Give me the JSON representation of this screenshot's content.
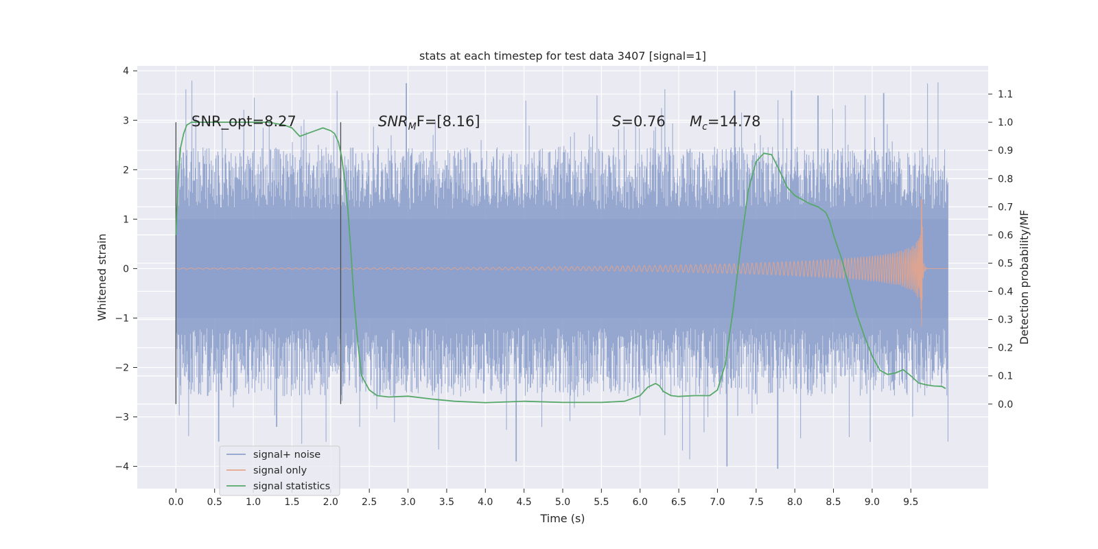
{
  "chart_data": {
    "type": "line",
    "title": "stats at each timestep for test data 3407 [signal=1]",
    "xlabel": "Time (s)",
    "ylabel": "Whitened strain",
    "y2label": "Detection probability/MF",
    "xlim": [
      -0.5,
      10.5
    ],
    "ylim": [
      -4.45,
      4.1
    ],
    "y2lim": [
      -0.3,
      1.2
    ],
    "x_ticks": [
      "0.0",
      "0.5",
      "1.0",
      "1.5",
      "2.0",
      "2.5",
      "3.0",
      "3.5",
      "4.0",
      "4.5",
      "5.0",
      "5.5",
      "6.0",
      "6.5",
      "7.0",
      "7.5",
      "8.0",
      "8.5",
      "9.0",
      "9.5"
    ],
    "y_ticks": [
      "4",
      "3",
      "2",
      "1",
      "0",
      "−1",
      "−2",
      "−3",
      "−4"
    ],
    "y2_ticks": [
      "1.1",
      "1.0",
      "0.9",
      "0.8",
      "0.7",
      "0.6",
      "0.5",
      "0.4",
      "0.3",
      "0.2",
      "0.1",
      "0.0"
    ],
    "grid": true,
    "legend": {
      "position": "lower-left",
      "entries": [
        {
          "label": "signal+ noise",
          "color": "#8da0cb"
        },
        {
          "label": "signal only",
          "color": "#e5a48b"
        },
        {
          "label": "signal statistics",
          "color": "#55a868"
        }
      ]
    },
    "annotations": {
      "snr_opt": "SNR_opt=8.27",
      "snr_mf_main": "SNR",
      "snr_mf_sub": "M",
      "snr_mf_rest": "F=[8.16]",
      "s_main": "S",
      "s_rest": "=0.76",
      "mc_main": "M",
      "mc_sub": "c",
      "mc_rest": "=14.78"
    },
    "vertical_lines": [
      0.0,
      2.13
    ],
    "series": [
      {
        "name": "signal+ noise",
        "style": "dense noise band",
        "x_range": [
          0.0,
          9.98
        ],
        "envelope": {
          "typical_max": 2.3,
          "typical_min": -2.4,
          "extreme_max": 3.75,
          "extreme_min": -4.1
        },
        "peaks": [
          {
            "x": 2.98,
            "y": 3.75
          },
          {
            "x": 7.22,
            "y": 3.6
          },
          {
            "x": 7.96,
            "y": 3.6
          },
          {
            "x": 9.15,
            "y": 3.55
          },
          {
            "x": 8.3,
            "y": 3.5
          },
          {
            "x": 4.4,
            "y": -3.9
          },
          {
            "x": 7.78,
            "y": -4.05
          },
          {
            "x": 7.12,
            "y": -4.0
          },
          {
            "x": 0.55,
            "y": -3.5
          },
          {
            "x": 1.3,
            "y": -3.2
          },
          {
            "x": 9.98,
            "y": -3.5
          }
        ]
      },
      {
        "name": "signal only",
        "style": "chirp",
        "x_range": [
          0.0,
          9.98
        ],
        "merger_time": 9.65,
        "peak_amplitude_high": 1.6,
        "peak_amplitude_low": -1.25
      },
      {
        "name": "signal statistics",
        "axis": "right",
        "x": [
          0.0,
          0.03,
          0.06,
          0.1,
          0.14,
          0.2,
          0.3,
          0.5,
          0.8,
          1.0,
          1.2,
          1.4,
          1.5,
          1.6,
          1.7,
          1.8,
          1.9,
          2.0,
          2.05,
          2.1,
          2.14,
          2.18,
          2.22,
          2.26,
          2.3,
          2.35,
          2.4,
          2.5,
          2.6,
          2.75,
          3.0,
          3.3,
          3.6,
          4.0,
          4.5,
          5.0,
          5.5,
          5.8,
          6.0,
          6.1,
          6.2,
          6.25,
          6.3,
          6.4,
          6.5,
          6.7,
          6.9,
          7.0,
          7.1,
          7.2,
          7.3,
          7.4,
          7.5,
          7.6,
          7.7,
          7.8,
          7.9,
          8.0,
          8.1,
          8.2,
          8.3,
          8.4,
          8.45,
          8.5,
          8.6,
          8.7,
          8.8,
          8.9,
          9.0,
          9.1,
          9.2,
          9.3,
          9.4,
          9.5,
          9.6,
          9.7,
          9.8,
          9.9,
          9.95
        ],
        "y": [
          0.6,
          0.8,
          0.91,
          0.96,
          0.99,
          1.0,
          1.0,
          1.0,
          1.0,
          1.0,
          1.0,
          0.99,
          0.98,
          0.95,
          0.96,
          0.97,
          0.98,
          0.97,
          0.96,
          0.93,
          0.88,
          0.8,
          0.7,
          0.55,
          0.38,
          0.22,
          0.1,
          0.05,
          0.03,
          0.025,
          0.028,
          0.018,
          0.01,
          0.005,
          0.01,
          0.006,
          0.006,
          0.01,
          0.03,
          0.06,
          0.073,
          0.065,
          0.045,
          0.03,
          0.027,
          0.03,
          0.03,
          0.05,
          0.14,
          0.33,
          0.56,
          0.76,
          0.86,
          0.89,
          0.885,
          0.83,
          0.77,
          0.74,
          0.725,
          0.71,
          0.7,
          0.68,
          0.65,
          0.6,
          0.52,
          0.42,
          0.32,
          0.24,
          0.17,
          0.12,
          0.105,
          0.11,
          0.122,
          0.1,
          0.075,
          0.068,
          0.064,
          0.063,
          0.055
        ]
      }
    ]
  }
}
